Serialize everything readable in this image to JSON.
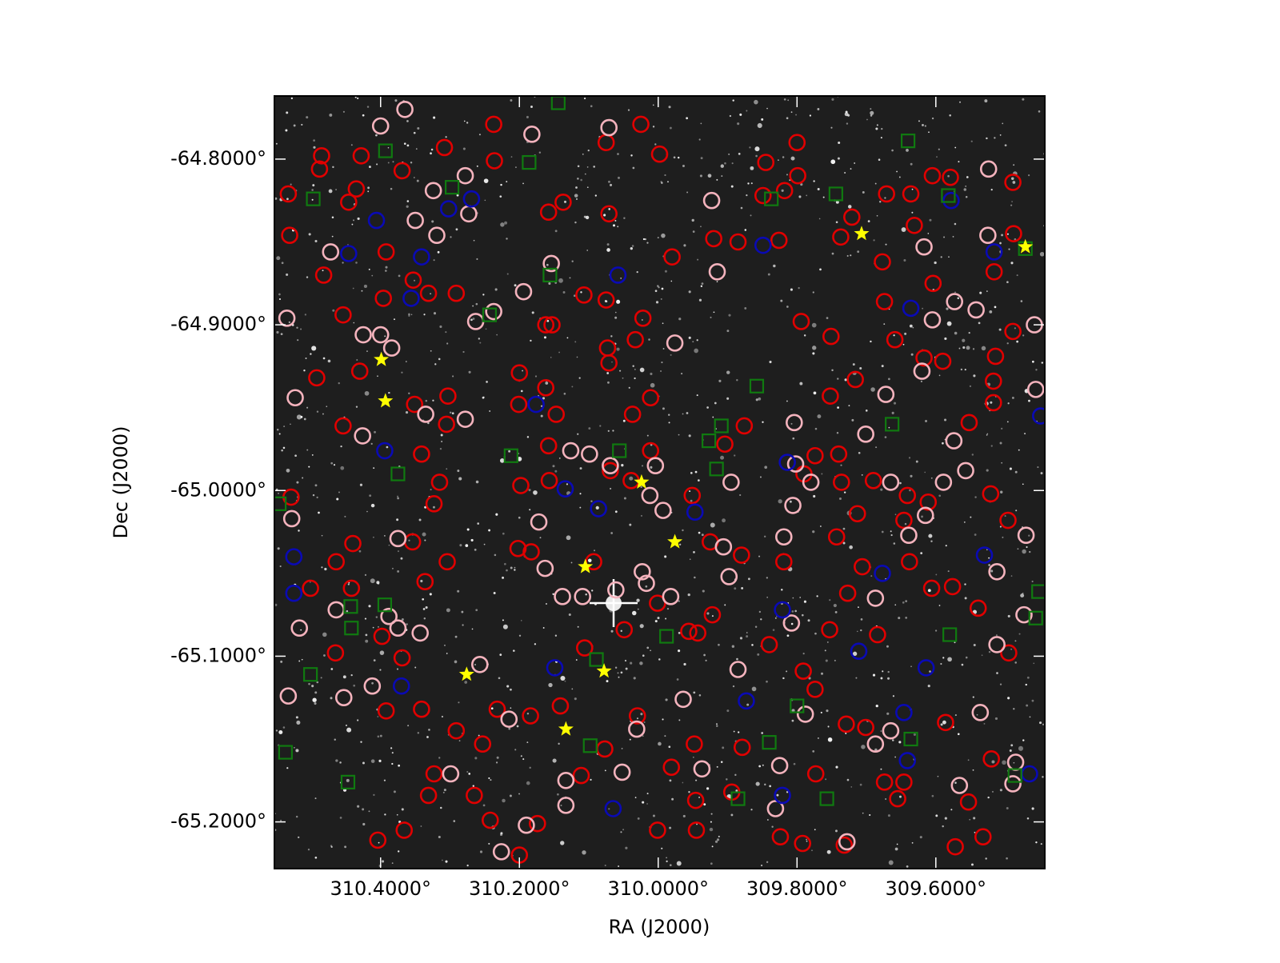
{
  "chart_data": {
    "type": "scatter",
    "xlabel": "RA (J2000)",
    "ylabel": "Dec (J2000)",
    "xlim": [
      310.553,
      309.443
    ],
    "ylim": [
      -65.2282,
      -64.7619
    ],
    "xticks": [
      {
        "value": 310.4,
        "label": "310.4000°"
      },
      {
        "value": 310.2,
        "label": "310.2000°"
      },
      {
        "value": 310.0,
        "label": "310.0000°"
      },
      {
        "value": 309.8,
        "label": "309.8000°"
      },
      {
        "value": 309.6,
        "label": "309.6000°"
      }
    ],
    "yticks": [
      {
        "value": -64.8,
        "label": "-64.8000°"
      },
      {
        "value": -64.9,
        "label": "-64.9000°"
      },
      {
        "value": -65.0,
        "label": "-65.0000°"
      },
      {
        "value": -65.1,
        "label": "-65.1000°"
      },
      {
        "value": -65.2,
        "label": "-65.2000°"
      }
    ],
    "background": "#1e1e1e",
    "series": [
      {
        "marker": "circle",
        "color": "#e00000",
        "x": [
          310.485,
          310.488,
          310.533,
          310.531,
          310.482,
          310.428,
          310.435,
          310.446,
          310.369,
          310.308,
          310.392,
          310.353,
          310.396,
          310.331,
          310.291,
          310.454,
          310.43,
          310.492,
          310.454,
          310.351,
          310.303,
          310.305,
          310.341,
          310.315,
          310.323,
          310.529,
          310.44,
          310.464,
          310.442,
          310.501,
          310.336,
          310.304,
          310.354,
          310.398,
          310.465,
          310.369,
          310.341,
          310.392,
          310.291,
          310.253,
          310.323,
          310.331,
          310.265,
          310.242,
          310.404,
          310.366,
          310.237,
          310.236,
          310.158,
          310.137,
          310.075,
          310.071,
          310.025,
          309.998,
          309.98,
          309.92,
          309.885,
          309.845,
          309.8,
          309.799,
          309.818,
          309.849,
          309.826,
          309.721,
          309.737,
          309.671,
          309.636,
          309.631,
          309.677,
          309.605,
          309.579,
          309.489,
          309.488,
          309.516,
          309.604,
          309.674,
          309.751,
          309.794,
          309.659,
          309.617,
          309.59,
          309.716,
          309.752,
          309.514,
          309.517,
          309.489,
          309.517,
          309.552,
          309.74,
          309.774,
          309.79,
          309.736,
          309.69,
          309.641,
          309.611,
          309.521,
          309.496,
          309.646,
          309.713,
          309.743,
          309.706,
          309.638,
          309.606,
          309.576,
          309.539,
          309.727,
          309.819,
          309.88,
          309.925,
          309.922,
          309.956,
          309.753,
          309.791,
          309.774,
          309.84,
          309.684,
          309.495,
          309.586,
          309.701,
          309.729,
          309.52,
          309.553,
          309.532,
          309.572,
          309.646,
          309.674,
          309.655,
          309.732,
          309.792,
          309.824,
          309.773,
          309.879,
          309.948,
          309.981,
          309.946,
          309.894,
          310.001,
          309.945,
          310.077,
          310.03,
          310.111,
          310.141,
          310.184,
          310.232,
          310.174,
          310.2,
          310.049,
          310.001,
          310.106,
          310.069,
          310.039,
          310.011,
          310.071,
          310.073,
          310.033,
          310.107,
          310.075,
          310.022,
          310.162,
          310.153,
          310.2,
          310.162,
          310.201,
          310.147,
          310.158,
          310.198,
          310.157,
          310.202,
          310.183,
          310.093,
          310.037,
          310.011,
          309.876,
          309.904,
          309.951,
          309.943
        ],
        "y": [
          -64.798,
          -64.806,
          -64.821,
          -64.846,
          -64.87,
          -64.798,
          -64.818,
          -64.826,
          -64.807,
          -64.793,
          -64.856,
          -64.873,
          -64.884,
          -64.881,
          -64.881,
          -64.894,
          -64.928,
          -64.932,
          -64.961,
          -64.948,
          -64.943,
          -64.96,
          -64.978,
          -64.995,
          -65.008,
          -65.004,
          -65.032,
          -65.043,
          -65.059,
          -65.059,
          -65.055,
          -65.043,
          -65.031,
          -65.088,
          -65.098,
          -65.101,
          -65.132,
          -65.133,
          -65.145,
          -65.153,
          -65.171,
          -65.184,
          -65.184,
          -65.199,
          -65.211,
          -65.205,
          -64.779,
          -64.801,
          -64.832,
          -64.826,
          -64.79,
          -64.833,
          -64.779,
          -64.797,
          -64.859,
          -64.848,
          -64.85,
          -64.802,
          -64.79,
          -64.81,
          -64.819,
          -64.822,
          -64.849,
          -64.835,
          -64.847,
          -64.821,
          -64.821,
          -64.84,
          -64.862,
          -64.81,
          -64.811,
          -64.814,
          -64.845,
          -64.868,
          -64.875,
          -64.886,
          -64.907,
          -64.898,
          -64.909,
          -64.92,
          -64.922,
          -64.933,
          -64.943,
          -64.919,
          -64.934,
          -64.904,
          -64.947,
          -64.959,
          -64.978,
          -64.979,
          -64.99,
          -64.995,
          -64.994,
          -65.003,
          -65.007,
          -65.002,
          -65.018,
          -65.018,
          -65.014,
          -65.028,
          -65.046,
          -65.043,
          -65.059,
          -65.058,
          -65.071,
          -65.062,
          -65.043,
          -65.039,
          -65.031,
          -65.075,
          -65.085,
          -65.084,
          -65.109,
          -65.12,
          -65.093,
          -65.087,
          -65.098,
          -65.14,
          -65.143,
          -65.141,
          -65.162,
          -65.188,
          -65.209,
          -65.215,
          -65.176,
          -65.176,
          -65.186,
          -65.214,
          -65.213,
          -65.209,
          -65.171,
          -65.155,
          -65.153,
          -65.167,
          -65.187,
          -65.182,
          -65.205,
          -65.205,
          -65.156,
          -65.136,
          -65.172,
          -65.13,
          -65.136,
          -65.132,
          -65.201,
          -65.22,
          -65.084,
          -65.068,
          -65.095,
          -64.988,
          -64.994,
          -64.976,
          -64.923,
          -64.914,
          -64.909,
          -64.882,
          -64.885,
          -64.896,
          -64.9,
          -64.9,
          -64.929,
          -64.938,
          -64.948,
          -64.954,
          -64.973,
          -64.997,
          -64.994,
          -65.035,
          -65.037,
          -65.043,
          -64.954,
          -64.944,
          -64.961,
          -64.972,
          -65.003,
          -65.086
        ]
      },
      {
        "marker": "circle",
        "color": "#f4b3bd",
        "x": [
          310.4,
          310.365,
          310.324,
          310.35,
          310.319,
          310.273,
          310.278,
          310.472,
          310.535,
          310.425,
          310.4,
          310.384,
          310.523,
          310.426,
          310.335,
          310.278,
          310.263,
          310.237,
          310.194,
          310.154,
          310.182,
          310.071,
          309.923,
          309.915,
          309.976,
          310.126,
          310.099,
          310.069,
          310.004,
          309.993,
          310.012,
          309.895,
          309.906,
          310.172,
          310.163,
          310.138,
          310.109,
          310.061,
          310.023,
          310.017,
          309.982,
          309.898,
          309.819,
          309.808,
          309.804,
          309.802,
          309.78,
          309.806,
          309.701,
          309.672,
          309.665,
          309.639,
          309.615,
          309.589,
          309.557,
          309.574,
          309.687,
          309.62,
          309.605,
          309.617,
          309.573,
          309.542,
          309.524,
          309.525,
          309.458,
          309.456,
          309.47,
          309.512,
          309.473,
          309.512,
          309.536,
          309.566,
          309.489,
          309.485,
          309.665,
          309.687,
          309.788,
          309.885,
          309.964,
          309.937,
          309.825,
          309.831,
          309.728,
          310.031,
          310.052,
          310.133,
          310.133,
          310.19,
          310.226,
          310.215,
          310.257,
          310.299,
          310.343,
          310.375,
          310.375,
          310.388,
          310.412,
          310.453,
          310.464,
          310.517,
          310.533,
          310.528
        ],
        "y": [
          -64.78,
          -64.77,
          -64.819,
          -64.837,
          -64.846,
          -64.833,
          -64.81,
          -64.856,
          -64.896,
          -64.906,
          -64.906,
          -64.914,
          -64.944,
          -64.967,
          -64.954,
          -64.957,
          -64.898,
          -64.892,
          -64.88,
          -64.863,
          -64.785,
          -64.781,
          -64.825,
          -64.868,
          -64.911,
          -64.976,
          -64.978,
          -64.985,
          -64.985,
          -65.012,
          -65.003,
          -64.995,
          -65.034,
          -65.019,
          -65.047,
          -65.064,
          -65.064,
          -65.06,
          -65.049,
          -65.056,
          -65.064,
          -65.052,
          -65.028,
          -65.08,
          -64.959,
          -64.984,
          -64.995,
          -65.009,
          -64.966,
          -64.942,
          -64.995,
          -65.027,
          -65.015,
          -64.995,
          -64.988,
          -64.97,
          -65.065,
          -64.928,
          -64.897,
          -64.853,
          -64.886,
          -64.891,
          -64.806,
          -64.846,
          -64.9,
          -64.939,
          -65.027,
          -65.049,
          -65.075,
          -65.093,
          -65.134,
          -65.178,
          -65.177,
          -65.164,
          -65.145,
          -65.153,
          -65.135,
          -65.108,
          -65.126,
          -65.168,
          -65.166,
          -65.192,
          -65.212,
          -65.144,
          -65.17,
          -65.175,
          -65.19,
          -65.202,
          -65.218,
          -65.138,
          -65.105,
          -65.171,
          -65.086,
          -65.083,
          -65.029,
          -65.076,
          -65.118,
          -65.125,
          -65.072,
          -65.083,
          -65.124,
          -65.017
        ]
      },
      {
        "marker": "circle",
        "color": "#0a0ab4",
        "x": [
          310.406,
          310.446,
          310.341,
          310.356,
          310.302,
          310.269,
          310.058,
          310.176,
          310.394,
          310.134,
          310.086,
          309.947,
          309.814,
          309.849,
          309.578,
          309.516,
          309.636,
          309.449,
          310.525,
          310.525,
          310.37,
          310.149,
          309.821,
          309.677,
          309.711,
          309.873,
          309.614,
          309.646,
          309.641,
          309.821,
          310.065,
          309.53,
          309.465
        ],
        "y": [
          -64.837,
          -64.857,
          -64.859,
          -64.884,
          -64.83,
          -64.824,
          -64.87,
          -64.948,
          -64.976,
          -64.999,
          -65.011,
          -65.013,
          -64.983,
          -64.852,
          -64.825,
          -64.856,
          -64.89,
          -64.955,
          -65.04,
          -65.062,
          -65.118,
          -65.107,
          -65.072,
          -65.05,
          -65.097,
          -65.127,
          -65.107,
          -65.134,
          -65.163,
          -65.184,
          -65.192,
          -65.039,
          -65.171
        ]
      },
      {
        "marker": "square",
        "color": "#107a10",
        "x": [
          310.393,
          310.497,
          310.297,
          310.186,
          310.144,
          309.64,
          309.744,
          309.837,
          309.582,
          309.471,
          310.156,
          310.243,
          309.858,
          309.909,
          309.927,
          309.916,
          310.056,
          310.212,
          310.375,
          309.663,
          310.546,
          310.443,
          310.394,
          310.442,
          310.501,
          310.089,
          309.988,
          309.58,
          309.452,
          309.456,
          309.8,
          309.84,
          309.636,
          310.098,
          310.537,
          310.447,
          309.885,
          309.757,
          309.486
        ],
        "y": [
          -64.795,
          -64.824,
          -64.817,
          -64.802,
          -64.766,
          -64.789,
          -64.821,
          -64.824,
          -64.822,
          -64.854,
          -64.87,
          -64.894,
          -64.937,
          -64.961,
          -64.97,
          -64.987,
          -64.976,
          -64.979,
          -64.99,
          -64.96,
          -65.008,
          -65.07,
          -65.069,
          -65.083,
          -65.111,
          -65.102,
          -65.088,
          -65.087,
          -65.061,
          -65.077,
          -65.13,
          -65.152,
          -65.15,
          -65.154,
          -65.158,
          -65.176,
          -65.186,
          -65.186,
          -65.172
        ]
      },
      {
        "marker": "star",
        "color": "#ffff00",
        "x": [
          310.399,
          310.393,
          309.707,
          309.471,
          310.024,
          309.976,
          310.105,
          310.078,
          310.276,
          310.133
        ],
        "y": [
          -64.921,
          -64.946,
          -64.845,
          -64.853,
          -64.995,
          -65.031,
          -65.046,
          -65.109,
          -65.111,
          -65.144
        ]
      }
    ]
  }
}
